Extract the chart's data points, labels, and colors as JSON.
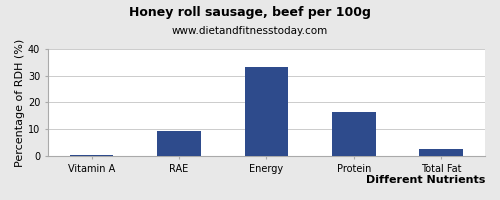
{
  "title": "Honey roll sausage, beef per 100g",
  "subtitle": "www.dietandfitnesstoday.com",
  "xlabel": "Different Nutrients",
  "ylabel": "Percentage of RDH (%)",
  "categories": [
    "Vitamin A",
    "RAE",
    "Energy",
    "Protein",
    "Total Fat"
  ],
  "values": [
    0.3,
    9.2,
    33.2,
    16.4,
    2.5
  ],
  "bar_color": "#2e4b8c",
  "ylim": [
    0,
    40
  ],
  "yticks": [
    0,
    10,
    20,
    30,
    40
  ],
  "background_color": "#e8e8e8",
  "plot_bg_color": "#ffffff",
  "title_fontsize": 9,
  "subtitle_fontsize": 7.5,
  "axis_label_fontsize": 8,
  "tick_fontsize": 7,
  "bar_width": 0.5
}
